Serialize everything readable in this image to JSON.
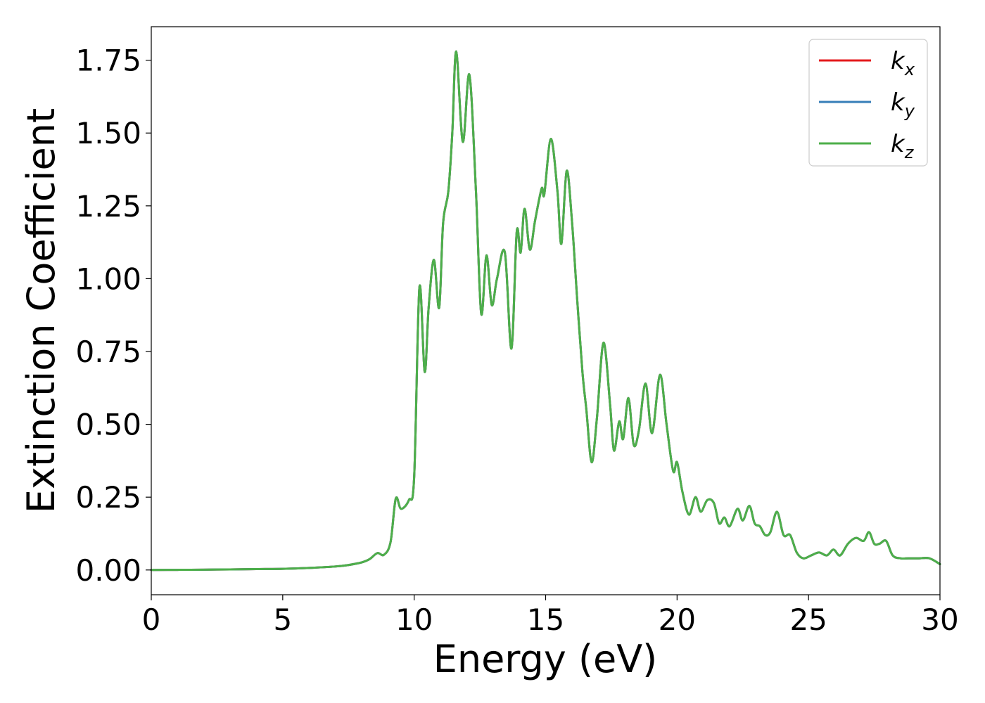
{
  "chart_data": {
    "type": "line",
    "xlabel": "Energy (eV)",
    "ylabel": "Extinction Coefficient",
    "xlim": [
      0,
      30
    ],
    "ylim": [
      -0.085,
      1.865
    ],
    "xticks": [
      0,
      5,
      10,
      15,
      20,
      25,
      30
    ],
    "xtick_labels": [
      "0",
      "5",
      "10",
      "15",
      "20",
      "25",
      "30"
    ],
    "yticks": [
      0,
      0.25,
      0.5,
      0.75,
      1.0,
      1.25,
      1.5,
      1.75
    ],
    "ytick_labels": [
      "0.00",
      "0.25",
      "0.50",
      "0.75",
      "1.00",
      "1.25",
      "1.50",
      "1.75"
    ],
    "grid": false,
    "legend_position": "top-right",
    "x": [
      0,
      1,
      2,
      3,
      4,
      5,
      6,
      7,
      7.5,
      8,
      8.3,
      8.6,
      8.85,
      9.1,
      9.3,
      9.5,
      9.8,
      10.0,
      10.2,
      10.4,
      10.55,
      10.75,
      10.95,
      11.1,
      11.3,
      11.45,
      11.6,
      11.85,
      12.1,
      12.35,
      12.55,
      12.75,
      12.95,
      13.15,
      13.45,
      13.7,
      13.9,
      14.05,
      14.2,
      14.4,
      14.6,
      14.85,
      14.95,
      15.2,
      15.45,
      15.6,
      15.8,
      16.0,
      16.2,
      16.4,
      16.55,
      16.75,
      16.95,
      17.2,
      17.45,
      17.6,
      17.8,
      17.95,
      18.15,
      18.35,
      18.55,
      18.8,
      19.05,
      19.35,
      19.6,
      19.85,
      20.0,
      20.2,
      20.45,
      20.7,
      20.9,
      21.15,
      21.4,
      21.6,
      21.8,
      22.0,
      22.3,
      22.5,
      22.75,
      22.95,
      23.15,
      23.35,
      23.55,
      23.8,
      24.05,
      24.3,
      24.55,
      24.8,
      25.1,
      25.4,
      25.7,
      25.95,
      26.2,
      26.5,
      26.8,
      27.1,
      27.3,
      27.5,
      27.7,
      27.95,
      28.2,
      28.5,
      28.8,
      29.2,
      29.6,
      30.0
    ],
    "series": [
      {
        "name": "k_x",
        "color": "#e41a1c",
        "values": [
          0.0,
          0.0005,
          0.001,
          0.002,
          0.003,
          0.004,
          0.007,
          0.012,
          0.017,
          0.026,
          0.037,
          0.058,
          0.052,
          0.095,
          0.245,
          0.21,
          0.24,
          0.32,
          0.97,
          0.68,
          0.9,
          1.065,
          0.9,
          1.19,
          1.3,
          1.5,
          1.78,
          1.47,
          1.7,
          1.3,
          0.88,
          1.08,
          0.91,
          1.0,
          1.09,
          0.76,
          1.16,
          1.09,
          1.24,
          1.1,
          1.2,
          1.31,
          1.29,
          1.48,
          1.3,
          1.12,
          1.37,
          1.2,
          0.93,
          0.68,
          0.55,
          0.37,
          0.52,
          0.78,
          0.57,
          0.41,
          0.51,
          0.45,
          0.59,
          0.43,
          0.48,
          0.64,
          0.47,
          0.67,
          0.5,
          0.34,
          0.37,
          0.27,
          0.19,
          0.25,
          0.2,
          0.24,
          0.23,
          0.16,
          0.18,
          0.15,
          0.21,
          0.17,
          0.22,
          0.16,
          0.15,
          0.12,
          0.13,
          0.2,
          0.12,
          0.12,
          0.06,
          0.04,
          0.05,
          0.06,
          0.05,
          0.07,
          0.05,
          0.09,
          0.11,
          0.1,
          0.13,
          0.09,
          0.09,
          0.1,
          0.05,
          0.04,
          0.04,
          0.04,
          0.04,
          0.02
        ]
      },
      {
        "name": "k_y",
        "color": "#377eb8",
        "values": [
          0.0,
          0.0005,
          0.001,
          0.002,
          0.003,
          0.004,
          0.007,
          0.012,
          0.017,
          0.026,
          0.037,
          0.058,
          0.052,
          0.095,
          0.245,
          0.21,
          0.24,
          0.32,
          0.97,
          0.68,
          0.9,
          1.065,
          0.9,
          1.19,
          1.3,
          1.5,
          1.78,
          1.47,
          1.7,
          1.3,
          0.88,
          1.08,
          0.91,
          1.0,
          1.09,
          0.76,
          1.16,
          1.09,
          1.24,
          1.1,
          1.2,
          1.31,
          1.29,
          1.48,
          1.3,
          1.12,
          1.37,
          1.2,
          0.93,
          0.68,
          0.55,
          0.37,
          0.52,
          0.78,
          0.57,
          0.41,
          0.51,
          0.45,
          0.59,
          0.43,
          0.48,
          0.64,
          0.47,
          0.67,
          0.5,
          0.34,
          0.37,
          0.27,
          0.19,
          0.25,
          0.2,
          0.24,
          0.23,
          0.16,
          0.18,
          0.15,
          0.21,
          0.17,
          0.22,
          0.16,
          0.15,
          0.12,
          0.13,
          0.2,
          0.12,
          0.12,
          0.06,
          0.04,
          0.05,
          0.06,
          0.05,
          0.07,
          0.05,
          0.09,
          0.11,
          0.1,
          0.13,
          0.09,
          0.09,
          0.1,
          0.05,
          0.04,
          0.04,
          0.04,
          0.04,
          0.02
        ]
      },
      {
        "name": "k_z",
        "color": "#4daf4a",
        "values": [
          0.0,
          0.0005,
          0.001,
          0.002,
          0.003,
          0.004,
          0.007,
          0.012,
          0.017,
          0.026,
          0.037,
          0.058,
          0.052,
          0.095,
          0.245,
          0.21,
          0.24,
          0.32,
          0.97,
          0.68,
          0.9,
          1.065,
          0.9,
          1.19,
          1.3,
          1.5,
          1.78,
          1.47,
          1.7,
          1.3,
          0.88,
          1.08,
          0.91,
          1.0,
          1.09,
          0.76,
          1.16,
          1.09,
          1.24,
          1.1,
          1.2,
          1.31,
          1.29,
          1.48,
          1.3,
          1.12,
          1.37,
          1.2,
          0.93,
          0.68,
          0.55,
          0.37,
          0.52,
          0.78,
          0.57,
          0.41,
          0.51,
          0.45,
          0.59,
          0.43,
          0.48,
          0.64,
          0.47,
          0.67,
          0.5,
          0.34,
          0.37,
          0.27,
          0.19,
          0.25,
          0.2,
          0.24,
          0.23,
          0.16,
          0.18,
          0.15,
          0.21,
          0.17,
          0.22,
          0.16,
          0.15,
          0.12,
          0.13,
          0.2,
          0.12,
          0.12,
          0.06,
          0.04,
          0.05,
          0.06,
          0.05,
          0.07,
          0.05,
          0.09,
          0.11,
          0.1,
          0.13,
          0.09,
          0.09,
          0.1,
          0.05,
          0.04,
          0.04,
          0.04,
          0.04,
          0.02
        ]
      }
    ],
    "legend": [
      {
        "base": "k",
        "sub": "x",
        "color": "#e41a1c"
      },
      {
        "base": "k",
        "sub": "y",
        "color": "#377eb8"
      },
      {
        "base": "k",
        "sub": "z",
        "color": "#4daf4a"
      }
    ]
  }
}
